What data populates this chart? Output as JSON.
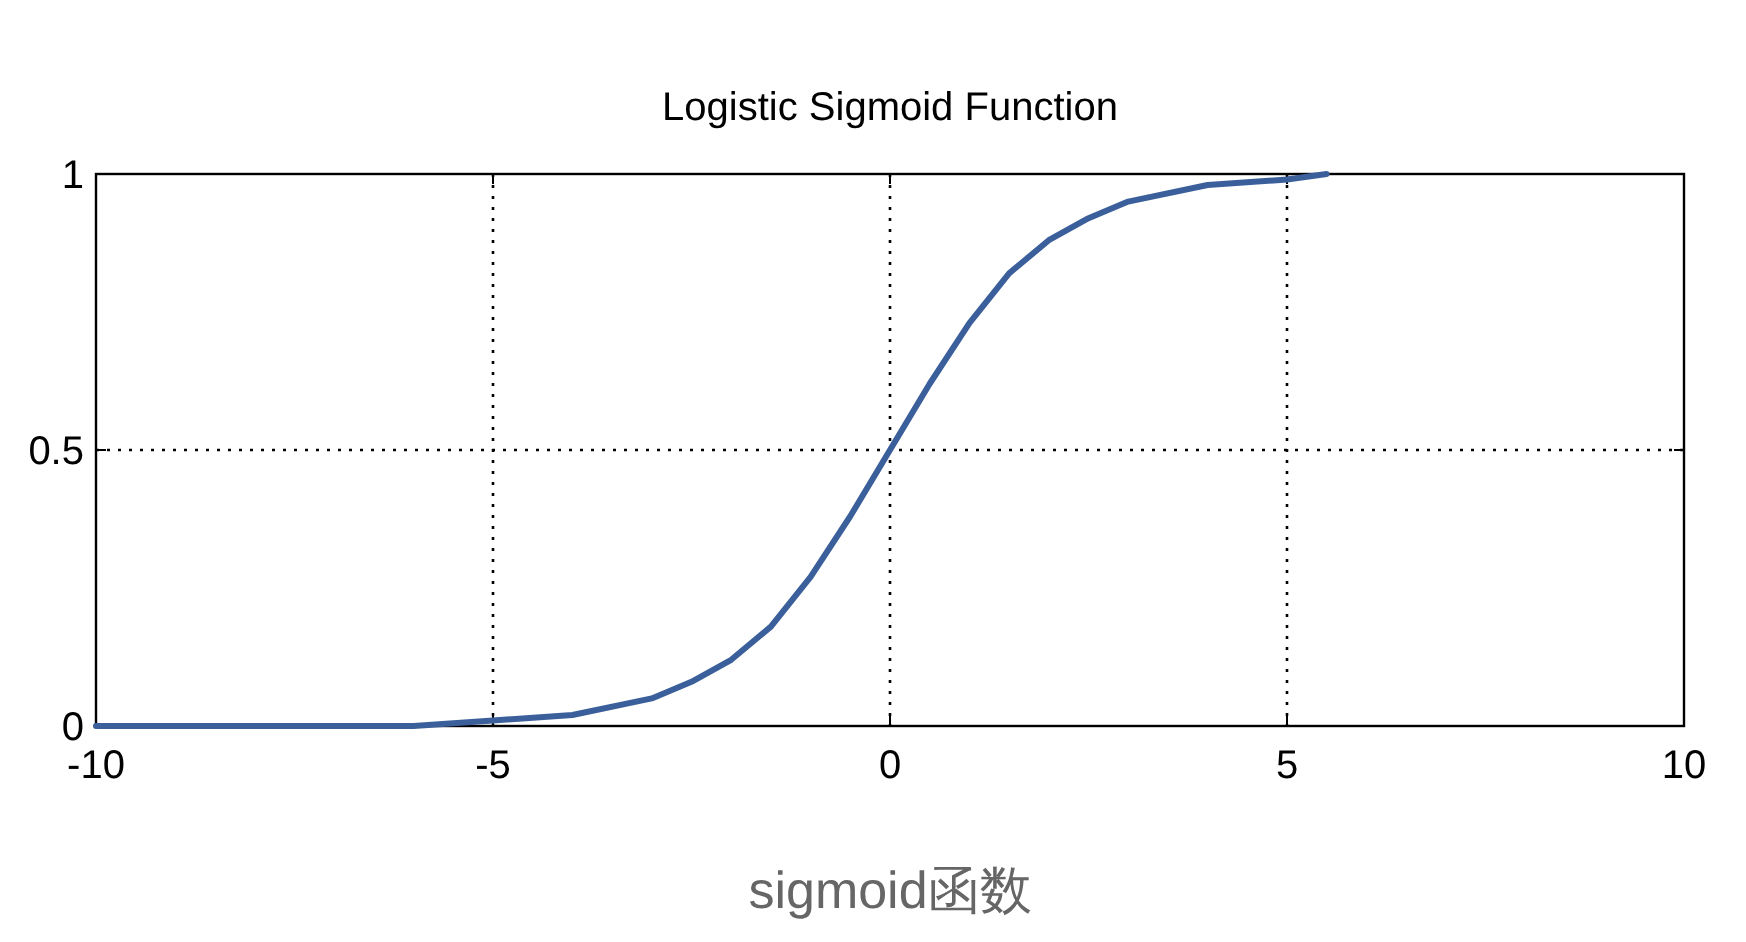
{
  "chart_data": {
    "type": "line",
    "title": "Logistic Sigmoid Function",
    "annotations": [
      "sigmoid函数"
    ],
    "x": [
      -10,
      -8,
      -6,
      -5,
      -4,
      -3,
      -2.5,
      -2,
      -1.5,
      -1,
      -0.5,
      0,
      0.5,
      1,
      1.5,
      2,
      2.5,
      3,
      4,
      5,
      5.5
    ],
    "series": [
      {
        "color": "#3a5f9a",
        "values": [
          0,
          0,
          0,
          0.01,
          0.02,
          0.05,
          0.08,
          0.12,
          0.18,
          0.27,
          0.38,
          0.5,
          0.62,
          0.73,
          0.82,
          0.88,
          0.92,
          0.95,
          0.98,
          0.99,
          1
        ]
      }
    ],
    "xlim": [
      -10,
      10
    ],
    "ylim": [
      0,
      1
    ],
    "xticks": [
      -10,
      -5,
      0,
      5,
      10
    ],
    "yticks": [
      0,
      0.5,
      1
    ],
    "grid": true,
    "marker": "none",
    "line_style": "solid"
  }
}
